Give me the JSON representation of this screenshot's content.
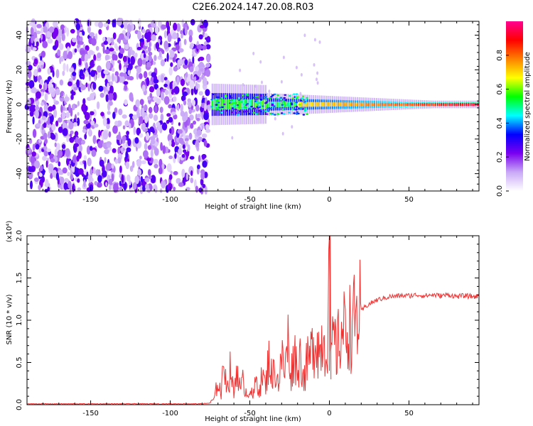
{
  "figure": {
    "title": "C2E6.2024.147.20.08.R03"
  },
  "chart_data": [
    {
      "type": "heatmap",
      "xlabel": "Height of straight line (km)",
      "ylabel": "Frequency (Hz)",
      "xlim": [
        -190,
        94
      ],
      "ylim": [
        -50,
        48
      ],
      "xticks": [
        -150,
        -100,
        -50,
        0,
        50
      ],
      "xtick_labels": [
        "-150",
        "-100",
        "-50",
        "0",
        "50"
      ],
      "yticks": [
        -40,
        -20,
        0,
        20,
        40
      ],
      "ytick_labels": [
        "-40",
        "-20",
        "0",
        "20",
        "40"
      ],
      "noise_region_x": [
        -190,
        -75
      ],
      "signal_center_hz": 0,
      "colorbar": {
        "label": "Normalized spectral amplitude",
        "range": [
          0,
          1
        ],
        "ticks": [
          0.0,
          0.2,
          0.4,
          0.6,
          0.8
        ],
        "tick_labels": [
          "0.0",
          "0.2",
          "0.4",
          "0.6",
          "0.8"
        ],
        "colors": [
          "#ffffff",
          "#c9a9f7",
          "#7a00f0",
          "#0000ff",
          "#00ffff",
          "#00ff00",
          "#ffff00",
          "#ff8000",
          "#ff0000",
          "#ff0090"
        ]
      },
      "grid": false
    },
    {
      "type": "line",
      "xlabel": "Height of straight line (km)",
      "ylabel": "SNR (10 * v/v)",
      "y_multiplier": "(x10⁴)",
      "xlim": [
        -190,
        94
      ],
      "ylim": [
        0,
        2.0
      ],
      "xticks": [
        -150,
        -100,
        -50,
        0,
        50
      ],
      "xtick_labels": [
        "-150",
        "-100",
        "-50",
        "0",
        "50"
      ],
      "yticks": [
        0.0,
        0.5,
        1.0,
        1.5,
        2.0
      ],
      "ytick_labels": [
        "0.0",
        "0.5",
        "1.0",
        "1.5",
        "2.0"
      ],
      "color": "#ee3333",
      "grid": false,
      "series": [
        {
          "x": [
            -190,
            -170,
            -150,
            -130,
            -110,
            -90,
            -80,
            -75,
            -72,
            -70,
            -68,
            -66,
            -64,
            -62,
            -60,
            -58,
            -56,
            -54,
            -52,
            -50,
            -48,
            -46,
            -44,
            -42,
            -40,
            -38,
            -36,
            -34,
            -32,
            -30,
            -28,
            -26,
            -24,
            -22,
            -20,
            -18,
            -16,
            -14,
            -12,
            -10,
            -8,
            -6,
            -4,
            -2,
            -1,
            0,
            1,
            2,
            3,
            4,
            6,
            8,
            10,
            12,
            14,
            16,
            18,
            20,
            22,
            24,
            26,
            28,
            30,
            32,
            34,
            36,
            38,
            40,
            45,
            50,
            55,
            60,
            65,
            70,
            75,
            80,
            85,
            90,
            94
          ],
          "y": [
            0.01,
            0.01,
            0.01,
            0.01,
            0.01,
            0.01,
            0.01,
            0.02,
            0.08,
            0.3,
            0.12,
            0.55,
            0.2,
            0.45,
            0.1,
            0.5,
            0.15,
            0.3,
            0.12,
            0.2,
            0.08,
            0.3,
            0.18,
            0.35,
            0.2,
            0.6,
            0.3,
            0.45,
            0.25,
            0.55,
            0.4,
            0.75,
            0.35,
            0.65,
            0.4,
            0.6,
            0.3,
            0.5,
            0.55,
            0.75,
            0.8,
            0.6,
            0.85,
            0.65,
            0.9,
            2.0,
            0.4,
            0.7,
            0.85,
            0.6,
            0.75,
            0.9,
            0.85,
            0.95,
            0.9,
            1.0,
            1.05,
            1.1,
            1.15,
            1.18,
            1.2,
            1.22,
            1.24,
            1.25,
            1.26,
            1.27,
            1.28,
            1.28,
            1.29,
            1.29,
            1.3,
            1.29,
            1.3,
            1.29,
            1.3,
            1.28,
            1.29,
            1.28,
            1.28
          ]
        }
      ]
    }
  ]
}
